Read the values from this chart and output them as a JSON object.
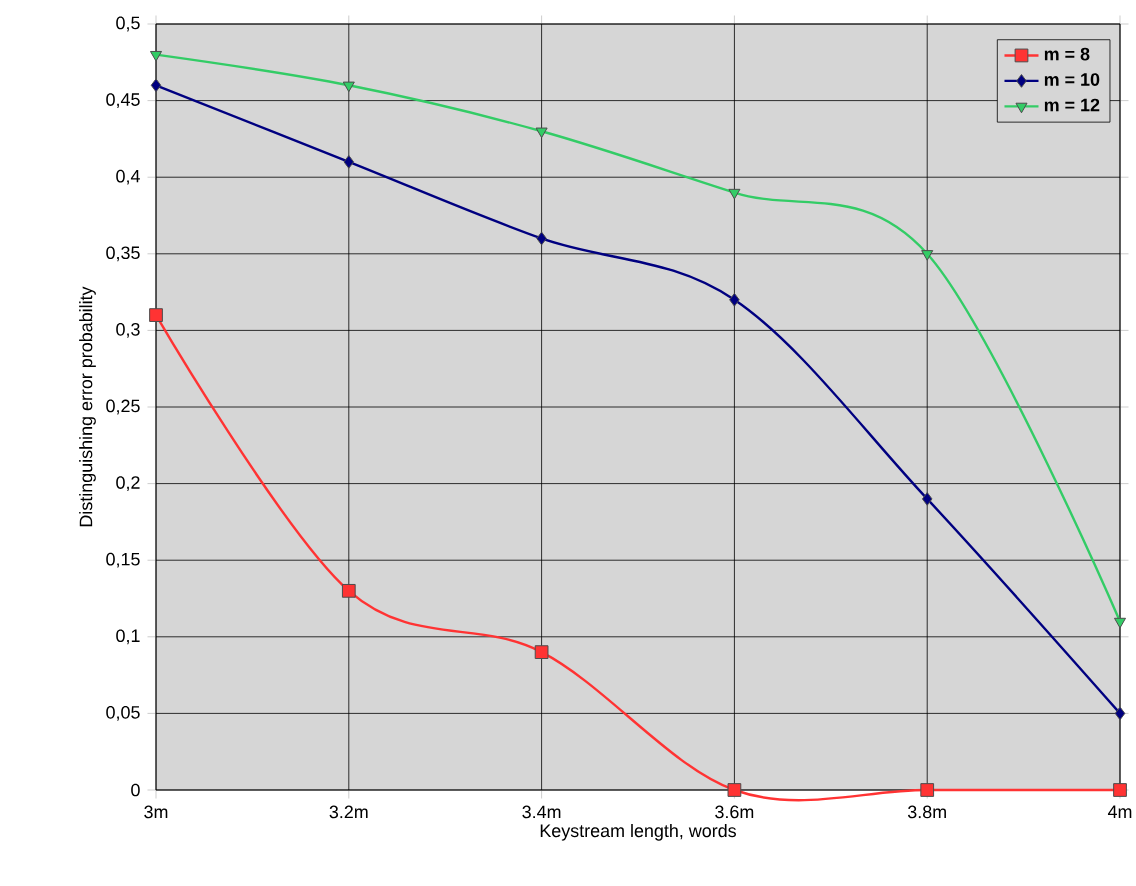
{
  "chart_data": {
    "type": "line",
    "xlabel": "Keystream length, words",
    "ylabel": "Distinguishing error probability",
    "categories": [
      "3m",
      "3.2m",
      "3.4m",
      "3.6m",
      "3.8m",
      "4m"
    ],
    "series": [
      {
        "name": "m = 8",
        "color": "#ff3333",
        "marker": "square",
        "values": [
          0.31,
          0.13,
          0.09,
          0,
          0,
          0
        ]
      },
      {
        "name": "m = 10",
        "color": "#000080",
        "marker": "diamond",
        "values": [
          0.46,
          0.41,
          0.36,
          0.32,
          0.19,
          0.05
        ]
      },
      {
        "name": "m = 12",
        "color": "#33cc66",
        "marker": "triangle",
        "values": [
          0.48,
          0.46,
          0.43,
          0.39,
          0.35,
          0.11
        ]
      }
    ],
    "ylim": [
      0,
      0.5
    ],
    "yticks": [
      0,
      {
        "value": 0.05,
        "label": "0,05"
      },
      {
        "value": 0.1,
        "label": "0,1"
      },
      {
        "value": 0.15,
        "label": "0,15"
      },
      {
        "value": 0.2,
        "label": "0,2"
      },
      {
        "value": 0.25,
        "label": "0,25"
      },
      {
        "value": 0.3,
        "label": "0,3"
      },
      {
        "value": 0.35,
        "label": "0,35"
      },
      {
        "value": 0.4,
        "label": "0,4"
      },
      {
        "value": 0.45,
        "label": "0,45"
      },
      {
        "value": 0.5,
        "label": "0,5"
      }
    ],
    "grid": true,
    "legend": "top right",
    "line_style": "solid"
  }
}
